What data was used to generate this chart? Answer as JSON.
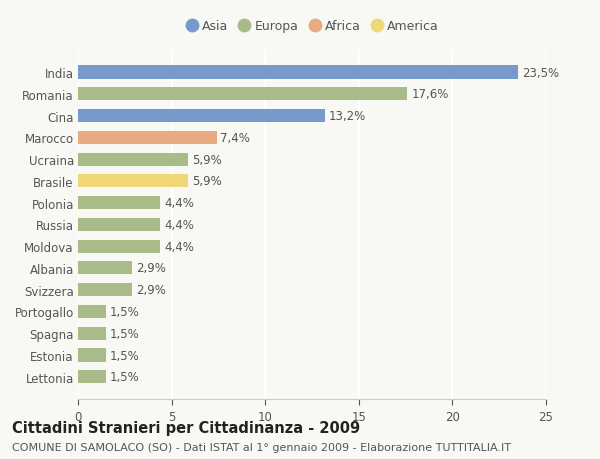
{
  "countries": [
    "Lettonia",
    "Estonia",
    "Spagna",
    "Portogallo",
    "Svizzera",
    "Albania",
    "Moldova",
    "Russia",
    "Polonia",
    "Brasile",
    "Ucraina",
    "Marocco",
    "Cina",
    "Romania",
    "India"
  ],
  "values": [
    1.5,
    1.5,
    1.5,
    1.5,
    2.9,
    2.9,
    4.4,
    4.4,
    4.4,
    5.9,
    5.9,
    7.4,
    13.2,
    17.6,
    23.5
  ],
  "labels": [
    "1,5%",
    "1,5%",
    "1,5%",
    "1,5%",
    "2,9%",
    "2,9%",
    "4,4%",
    "4,4%",
    "4,4%",
    "5,9%",
    "5,9%",
    "7,4%",
    "13,2%",
    "17,6%",
    "23,5%"
  ],
  "colors": [
    "#aabb8a",
    "#aabb8a",
    "#aabb8a",
    "#aabb8a",
    "#aabb8a",
    "#aabb8a",
    "#aabb8a",
    "#aabb8a",
    "#aabb8a",
    "#f0d878",
    "#aabb8a",
    "#e8aa80",
    "#7799cc",
    "#aabb8a",
    "#7799cc"
  ],
  "legend_labels": [
    "Asia",
    "Europa",
    "Africa",
    "America"
  ],
  "legend_colors": [
    "#7799cc",
    "#aabb8a",
    "#e8aa80",
    "#f0d878"
  ],
  "title": "Cittadini Stranieri per Cittadinanza - 2009",
  "subtitle": "COMUNE DI SAMOLACO (SO) - Dati ISTAT al 1° gennaio 2009 - Elaborazione TUTTITALIA.IT",
  "xlim": [
    0,
    25
  ],
  "xticks": [
    0,
    5,
    10,
    15,
    20,
    25
  ],
  "background_color": "#f8f8f4",
  "bar_height": 0.6,
  "label_fontsize": 8.5,
  "tick_fontsize": 8.5,
  "title_fontsize": 10.5,
  "subtitle_fontsize": 8.0
}
